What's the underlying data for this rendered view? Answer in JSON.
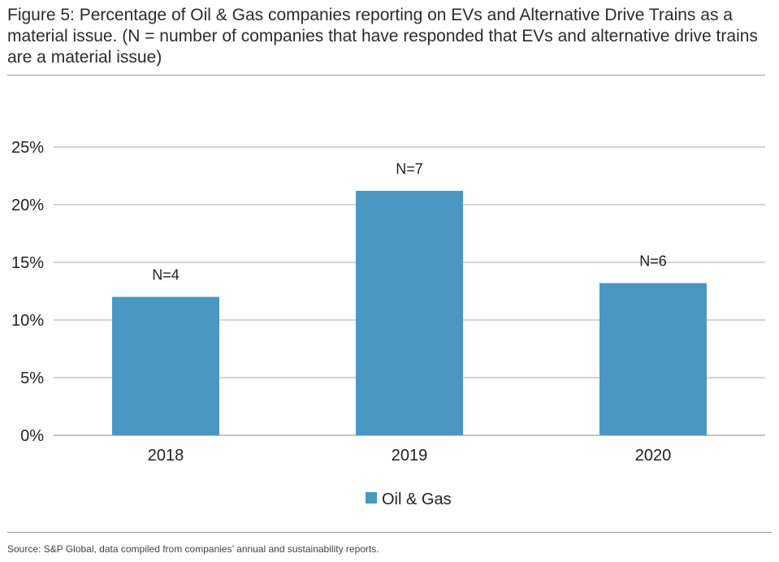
{
  "chart_data": {
    "type": "bar",
    "title": "Figure 5: Percentage of Oil & Gas companies reporting on EVs and Alternative Drive Trains as a material issue. (N = number of companies that have responded that EVs and alternative drive trains are a material issue)",
    "categories": [
      "2018",
      "2019",
      "2020"
    ],
    "series": [
      {
        "name": "Oil & Gas",
        "values": [
          12.0,
          21.2,
          13.2
        ],
        "data_labels": [
          "N=4",
          "N=7",
          "N=6"
        ],
        "color": "#4a98c2"
      }
    ],
    "xlabel": "",
    "ylabel": "",
    "ylim": [
      0,
      25
    ],
    "yticks": [
      0,
      5,
      10,
      15,
      20,
      25
    ],
    "ytick_labels": [
      "0%",
      "5%",
      "10%",
      "15%",
      "20%",
      "25%"
    ],
    "grid": true,
    "legend": "bottom-center",
    "source": "Source: S&P Global, data compiled from companies’ annual and sustainability reports."
  }
}
